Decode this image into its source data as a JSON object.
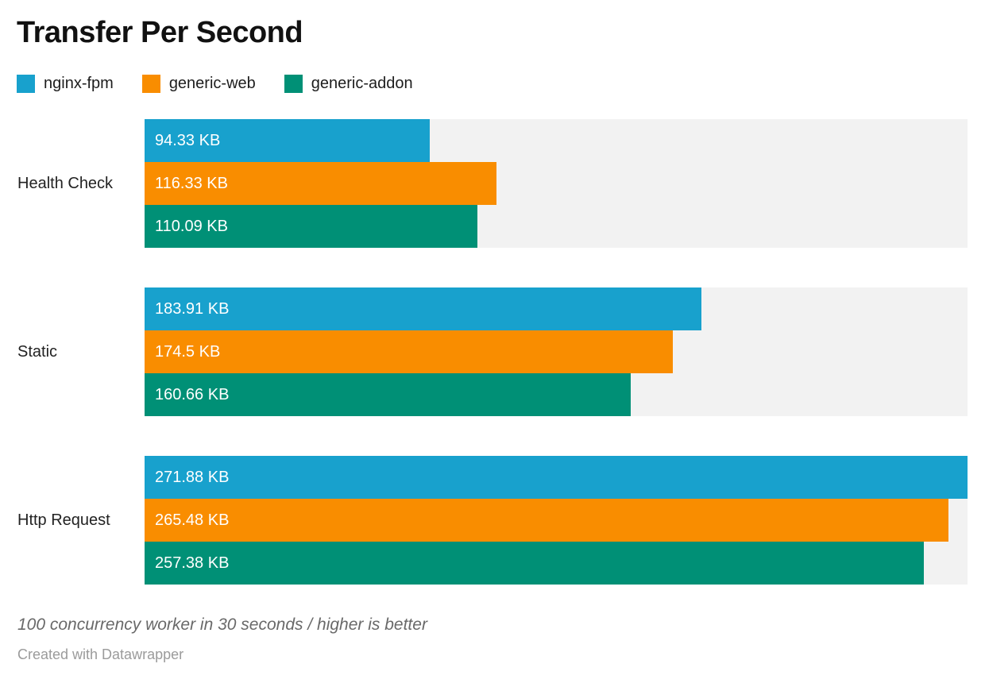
{
  "header": {
    "title": "Transfer Per Second"
  },
  "chart_data": {
    "type": "bar",
    "orientation": "horizontal",
    "title": "Transfer Per Second",
    "categories": [
      "Health Check",
      "Static",
      "Http Request"
    ],
    "series": [
      {
        "name": "nginx-fpm",
        "color": "#18a1cd",
        "values": [
          94.33,
          183.91,
          271.88
        ],
        "labels": [
          "94.33 KB",
          "183.91 KB",
          "271.88 KB"
        ]
      },
      {
        "name": "generic-web",
        "color": "#f98d00",
        "values": [
          116.33,
          174.5,
          265.48
        ],
        "labels": [
          "116.33 KB",
          "174.5 KB",
          "265.48 KB"
        ]
      },
      {
        "name": "generic-addon",
        "color": "#009076",
        "values": [
          110.09,
          160.66,
          257.38
        ],
        "labels": [
          "110.09 KB",
          "160.66 KB",
          "257.38 KB"
        ]
      }
    ],
    "unit": "KB",
    "xlim": [
      0,
      271.88
    ],
    "value_label_position": "inside-left",
    "legend_position": "top",
    "grid": false,
    "track_color": "#f2f2f2"
  },
  "footer": {
    "note": "100 concurrency worker in 30 seconds / higher is better",
    "credit": "Created with Datawrapper"
  }
}
